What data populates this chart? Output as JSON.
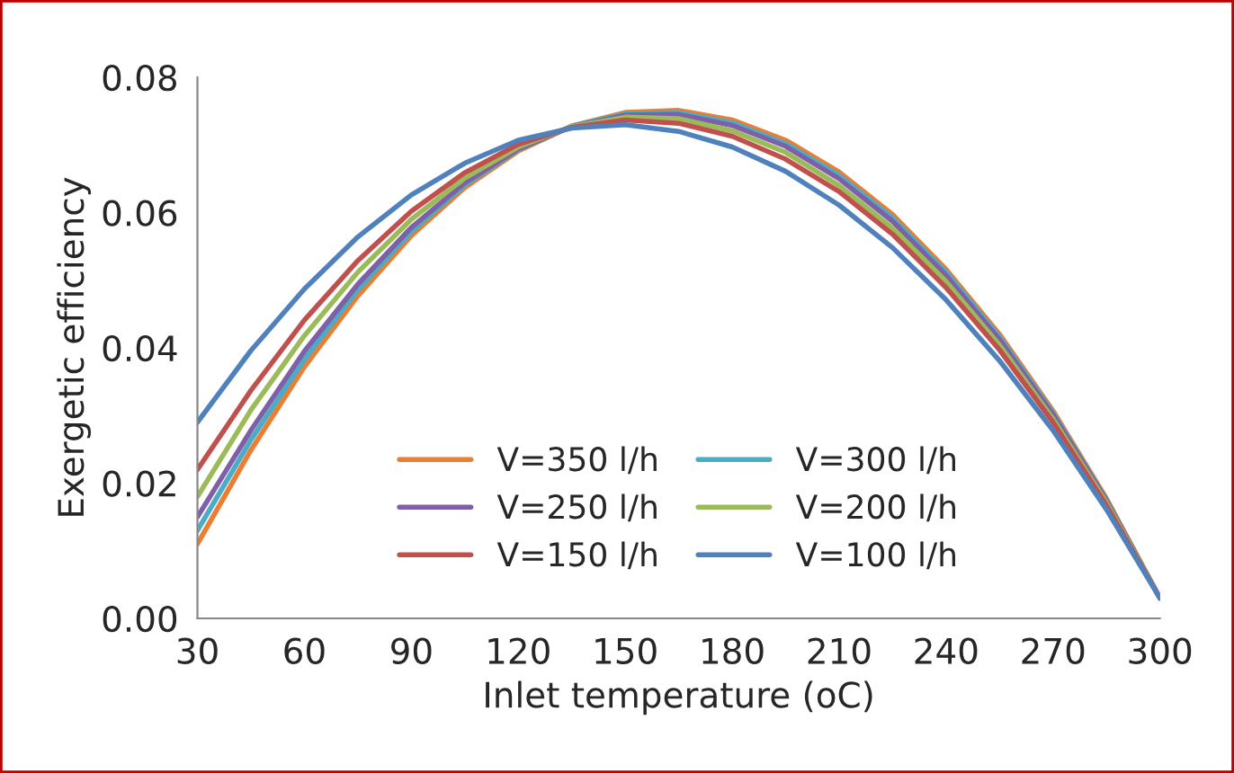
{
  "chart_data": {
    "type": "line",
    "xlabel": "Inlet temperature (oC)",
    "ylabel": "Exergetic efficiency",
    "x": [
      30,
      45,
      60,
      75,
      90,
      105,
      120,
      135,
      150,
      165,
      180,
      195,
      210,
      225,
      240,
      255,
      270,
      285,
      300
    ],
    "xlim": [
      30,
      300
    ],
    "xticks": [
      30,
      60,
      90,
      120,
      150,
      180,
      210,
      240,
      270,
      300
    ],
    "ylim": [
      0,
      0.08
    ],
    "yticks": [
      {
        "value": 0,
        "label": "0.00"
      },
      {
        "value": 0.02,
        "label": "0.02"
      },
      {
        "value": 0.04,
        "label": "0.04"
      },
      {
        "value": 0.06,
        "label": "0.06"
      },
      {
        "value": 0.08,
        "label": "0.08"
      }
    ],
    "grid": false,
    "legend": "bottom",
    "marker": "none",
    "line_style": "solid",
    "series": [
      {
        "name": "V=350 l/h",
        "color": "#ed7d31",
        "values": [
          0.011,
          0.0249,
          0.0372,
          0.0477,
          0.0566,
          0.0637,
          0.0691,
          0.0728,
          0.0748,
          0.0751,
          0.0737,
          0.0707,
          0.066,
          0.0597,
          0.0516,
          0.042,
          0.0307,
          0.0177,
          0.003
        ]
      },
      {
        "name": "V=300 l/h",
        "color": "#4bacc6",
        "values": [
          0.013,
          0.0264,
          0.0383,
          0.0486,
          0.0572,
          0.0641,
          0.0693,
          0.0728,
          0.0746,
          0.0748,
          0.0733,
          0.0702,
          0.0655,
          0.0592,
          0.0512,
          0.0416,
          0.0304,
          0.0175,
          0.003
        ]
      },
      {
        "name": "V=250 l/h",
        "color": "#7f60a8",
        "values": [
          0.015,
          0.0278,
          0.0395,
          0.0494,
          0.0578,
          0.0644,
          0.0694,
          0.0727,
          0.0744,
          0.0745,
          0.0729,
          0.0698,
          0.065,
          0.0587,
          0.0507,
          0.0412,
          0.0301,
          0.0174,
          0.003
        ]
      },
      {
        "name": "V=200 l/h",
        "color": "#9bbb59",
        "values": [
          0.018,
          0.0308,
          0.0418,
          0.0512,
          0.059,
          0.0651,
          0.0697,
          0.0727,
          0.0741,
          0.0739,
          0.0721,
          0.0689,
          0.064,
          0.0577,
          0.0498,
          0.0404,
          0.0295,
          0.0171,
          0.003
        ]
      },
      {
        "name": "V=150 l/h",
        "color": "#c0504d",
        "values": [
          0.022,
          0.0337,
          0.0441,
          0.0529,
          0.0602,
          0.0659,
          0.0701,
          0.0726,
          0.0737,
          0.0732,
          0.0713,
          0.0679,
          0.0631,
          0.0568,
          0.0489,
          0.0397,
          0.029,
          0.0167,
          0.003
        ]
      },
      {
        "name": "V=100 l/h",
        "color": "#4f81bd",
        "values": [
          0.029,
          0.0396,
          0.0487,
          0.0564,
          0.0626,
          0.0673,
          0.0707,
          0.0725,
          0.073,
          0.072,
          0.0697,
          0.0661,
          0.0611,
          0.0548,
          0.0471,
          0.0381,
          0.0278,
          0.0161,
          0.003
        ]
      }
    ]
  }
}
